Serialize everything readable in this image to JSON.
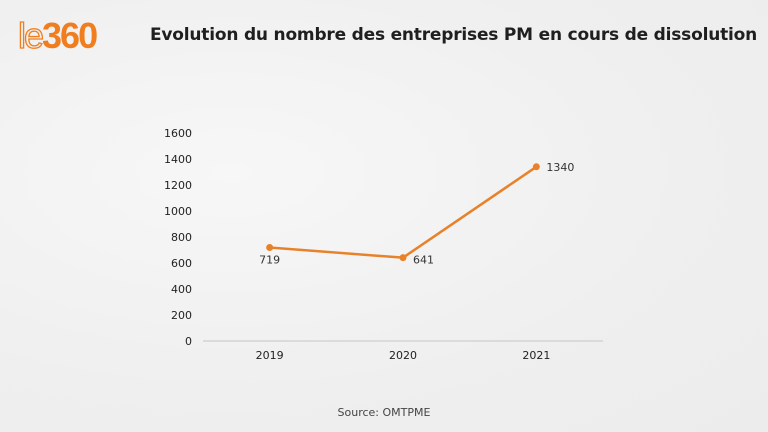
{
  "logo": {
    "prefix": "le",
    "number": "360"
  },
  "header": {
    "title": "Evolution du nombre des entreprises PM en cours de dissolution"
  },
  "footer": {
    "source": "Source: OMTPME"
  },
  "colors": {
    "line": "#E8822A",
    "axis": "#d4d4d4",
    "brand": "#f07e1e"
  },
  "chart_data": {
    "type": "line",
    "title": "Evolution du nombre des entreprises PM en cours de dissolution",
    "xlabel": "",
    "ylabel": "",
    "categories": [
      "2019",
      "2020",
      "2021"
    ],
    "series": [
      {
        "name": "Entreprises PM en cours de dissolution",
        "values": [
          719,
          641,
          1340
        ]
      }
    ],
    "data_labels": [
      "719",
      "641",
      "1340"
    ],
    "ylim": [
      0,
      1600
    ],
    "yticks": [
      0,
      200,
      400,
      600,
      800,
      1000,
      1200,
      1400,
      1600
    ],
    "grid": false,
    "legend": "none",
    "source": "Source: OMTPME"
  }
}
